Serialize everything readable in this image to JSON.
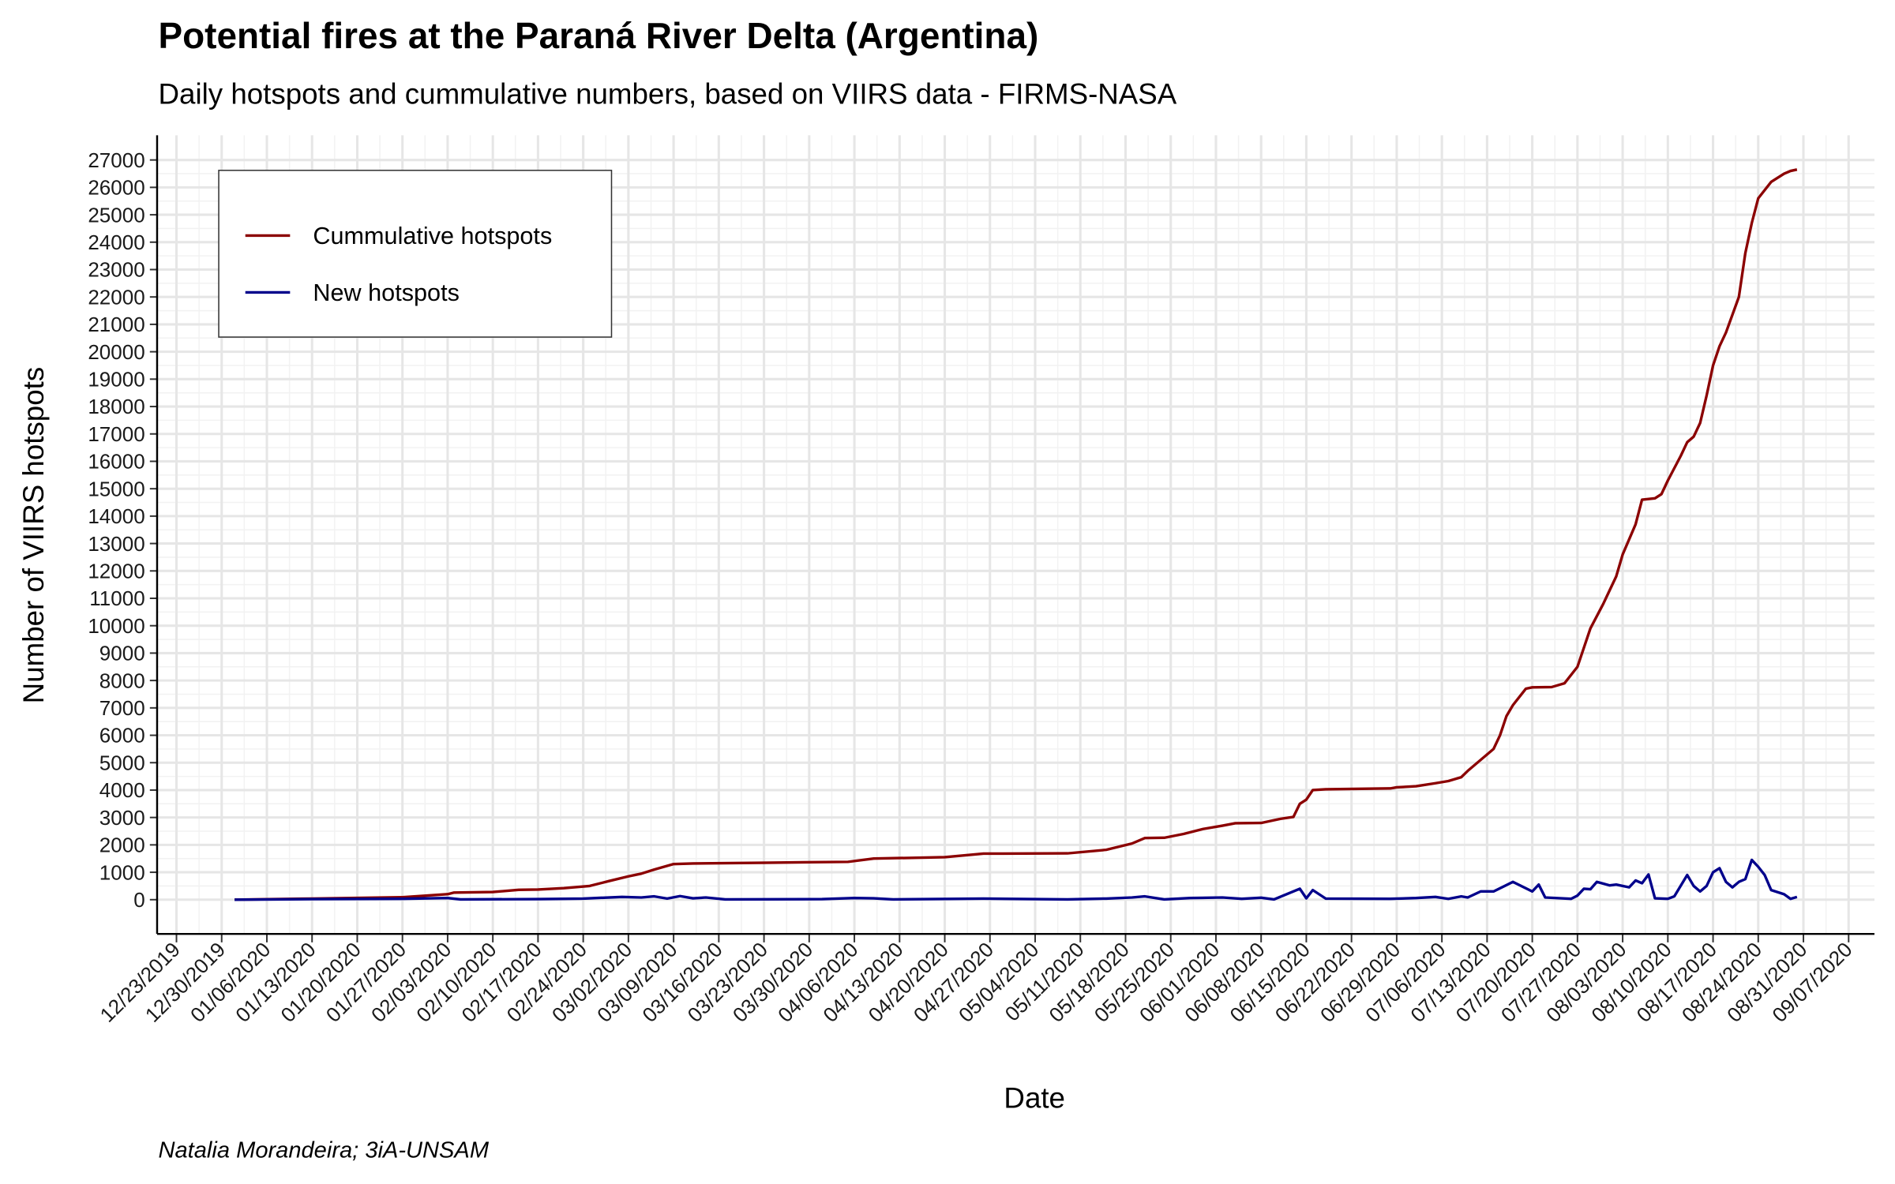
{
  "chart_data": {
    "type": "line",
    "title": "Potential fires at the Paraná River Delta (Argentina)",
    "subtitle": "Daily hotspots and cummulative numbers, based on VIIRS data - FIRMS-NASA",
    "caption": "Natalia Morandeira; 3iA-UNSAM",
    "x_label": "Date",
    "y_label": "Number of VIIRS hotspots",
    "xlim": [
      "12/20/2019",
      "09/11/2020"
    ],
    "xticks": [
      "12/23/2019",
      "12/30/2019",
      "01/06/2020",
      "01/13/2020",
      "01/20/2020",
      "01/27/2020",
      "02/03/2020",
      "02/10/2020",
      "02/17/2020",
      "02/24/2020",
      "03/02/2020",
      "03/09/2020",
      "03/16/2020",
      "03/23/2020",
      "03/30/2020",
      "04/06/2020",
      "04/13/2020",
      "04/20/2020",
      "04/27/2020",
      "05/04/2020",
      "05/11/2020",
      "05/18/2020",
      "05/25/2020",
      "06/01/2020",
      "06/08/2020",
      "06/15/2020",
      "06/22/2020",
      "06/29/2020",
      "07/06/2020",
      "07/13/2020",
      "07/20/2020",
      "07/27/2020",
      "08/03/2020",
      "08/10/2020",
      "08/17/2020",
      "08/24/2020",
      "08/31/2020",
      "09/07/2020"
    ],
    "ylim": [
      -1250,
      27900
    ],
    "yticks": [
      0,
      1000,
      2000,
      3000,
      4000,
      5000,
      6000,
      7000,
      8000,
      9000,
      10000,
      11000,
      12000,
      13000,
      14000,
      15000,
      16000,
      17000,
      18000,
      19000,
      20000,
      21000,
      22000,
      23000,
      24000,
      25000,
      26000,
      27000
    ],
    "grid": true,
    "legend_position": "top-left",
    "series": [
      {
        "name": "Cummulative hotspots",
        "color": "#8b0000",
        "x": [
          "01/01/2020",
          "01/13/2020",
          "01/27/2020",
          "02/03/2020",
          "02/04/2020",
          "02/10/2020",
          "02/14/2020",
          "02/17/2020",
          "02/21/2020",
          "02/25/2020",
          "02/28/2020",
          "03/02/2020",
          "03/04/2020",
          "03/06/2020",
          "03/09/2020",
          "03/12/2020",
          "03/24/2020",
          "04/05/2020",
          "04/09/2020",
          "04/20/2020",
          "04/26/2020",
          "05/09/2020",
          "05/15/2020",
          "05/19/2020",
          "05/21/2020",
          "05/24/2020",
          "05/27/2020",
          "05/30/2020",
          "06/02/2020",
          "06/04/2020",
          "06/08/2020",
          "06/11/2020",
          "06/13/2020",
          "06/14/2020",
          "06/15/2020",
          "06/16/2020",
          "06/18/2020",
          "06/28/2020",
          "06/29/2020",
          "07/02/2020",
          "07/05/2020",
          "07/07/2020",
          "07/09/2020",
          "07/10/2020",
          "07/12/2020",
          "07/14/2020",
          "07/15/2020",
          "07/16/2020",
          "07/17/2020",
          "07/19/2020",
          "07/20/2020",
          "07/23/2020",
          "07/25/2020",
          "07/27/2020",
          "07/29/2020",
          "07/31/2020",
          "08/02/2020",
          "08/03/2020",
          "08/05/2020",
          "08/06/2020",
          "08/08/2020",
          "08/09/2020",
          "08/10/2020",
          "08/12/2020",
          "08/13/2020",
          "08/14/2020",
          "08/15/2020",
          "08/16/2020",
          "08/17/2020",
          "08/18/2020",
          "08/19/2020",
          "08/21/2020",
          "08/22/2020",
          "08/23/2020",
          "08/24/2020",
          "08/26/2020",
          "08/28/2020",
          "08/29/2020",
          "08/30/2020"
        ],
        "values": [
          0,
          40,
          90,
          200,
          260,
          280,
          360,
          370,
          420,
          500,
          680,
          850,
          950,
          1100,
          1300,
          1320,
          1350,
          1380,
          1500,
          1550,
          1680,
          1690,
          1820,
          2050,
          2250,
          2260,
          2400,
          2580,
          2700,
          2790,
          2800,
          2950,
          3020,
          3500,
          3650,
          4000,
          4030,
          4060,
          4100,
          4140,
          4250,
          4330,
          4470,
          4700,
          5100,
          5500,
          6000,
          6700,
          7100,
          7700,
          7750,
          7760,
          7900,
          8500,
          9900,
          10800,
          11800,
          12600,
          13700,
          14600,
          14650,
          14800,
          15300,
          16200,
          16700,
          16900,
          17400,
          18400,
          19500,
          20200,
          20700,
          22000,
          23600,
          24700,
          25600,
          26200,
          26500,
          26600,
          26650
        ]
      },
      {
        "name": "New hotspots",
        "color": "#00008b",
        "x": [
          "01/01/2020",
          "01/13/2020",
          "01/27/2020",
          "02/03/2020",
          "02/05/2020",
          "02/17/2020",
          "02/24/2020",
          "03/01/2020",
          "03/04/2020",
          "03/06/2020",
          "03/08/2020",
          "03/10/2020",
          "03/12/2020",
          "03/14/2020",
          "03/17/2020",
          "04/01/2020",
          "04/06/2020",
          "04/09/2020",
          "04/12/2020",
          "04/26/2020",
          "05/09/2020",
          "05/15/2020",
          "05/19/2020",
          "05/21/2020",
          "05/24/2020",
          "05/28/2020",
          "06/02/2020",
          "06/05/2020",
          "06/08/2020",
          "06/10/2020",
          "06/14/2020",
          "06/15/2020",
          "06/16/2020",
          "06/18/2020",
          "06/28/2020",
          "07/02/2020",
          "07/05/2020",
          "07/07/2020",
          "07/09/2020",
          "07/10/2020",
          "07/12/2020",
          "07/14/2020",
          "07/17/2020",
          "07/20/2020",
          "07/21/2020",
          "07/22/2020",
          "07/26/2020",
          "07/27/2020",
          "07/28/2020",
          "07/29/2020",
          "07/30/2020",
          "08/01/2020",
          "08/02/2020",
          "08/04/2020",
          "08/05/2020",
          "08/06/2020",
          "08/07/2020",
          "08/08/2020",
          "08/10/2020",
          "08/11/2020",
          "08/13/2020",
          "08/14/2020",
          "08/15/2020",
          "08/16/2020",
          "08/17/2020",
          "08/18/2020",
          "08/19/2020",
          "08/20/2020",
          "08/21/2020",
          "08/22/2020",
          "08/23/2020",
          "08/24/2020",
          "08/25/2020",
          "08/26/2020",
          "08/28/2020",
          "08/29/2020",
          "08/30/2020"
        ],
        "values": [
          0,
          20,
          30,
          60,
          10,
          20,
          40,
          100,
          80,
          120,
          40,
          130,
          50,
          80,
          10,
          20,
          60,
          50,
          10,
          40,
          10,
          40,
          80,
          120,
          10,
          60,
          80,
          30,
          70,
          10,
          400,
          50,
          350,
          40,
          30,
          60,
          100,
          30,
          120,
          80,
          300,
          300,
          650,
          300,
          550,
          80,
          30,
          150,
          400,
          380,
          650,
          520,
          550,
          450,
          700,
          600,
          920,
          50,
          30,
          120,
          900,
          500,
          300,
          500,
          1000,
          1150,
          650,
          450,
          650,
          750,
          1450,
          1200,
          900,
          350,
          200,
          30,
          100
        ]
      }
    ]
  }
}
